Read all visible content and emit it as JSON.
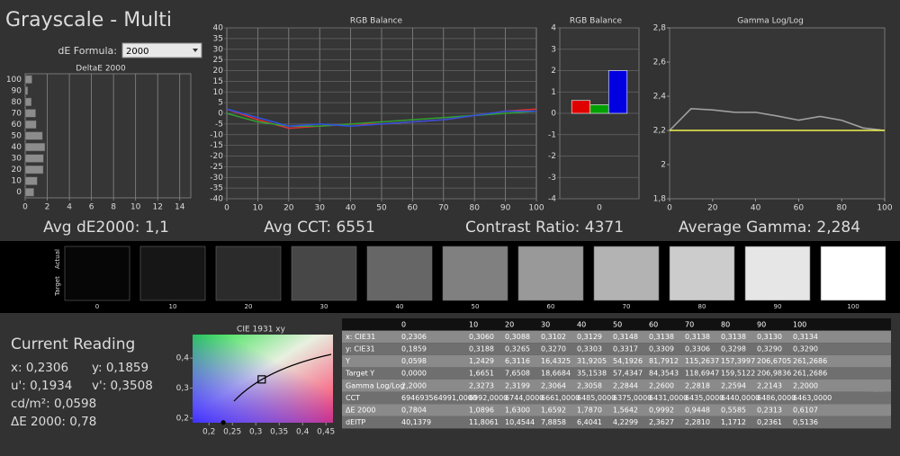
{
  "header": {
    "title": "Grayscale - Multi",
    "formula_label": "dE Formula:",
    "formula_value": "2000"
  },
  "chart_data": [
    {
      "type": "bar",
      "horizontal": true,
      "title": "DeltaE 2000",
      "categories": [
        "0",
        "10",
        "20",
        "30",
        "40",
        "50",
        "60",
        "70",
        "80",
        "90",
        "100"
      ],
      "values": [
        0.7804,
        1.0896,
        1.63,
        1.6592,
        1.787,
        1.5642,
        0.9992,
        0.9448,
        0.5585,
        0.2313,
        0.6107
      ],
      "color": "#8c8c8c",
      "xlim": [
        0,
        15
      ],
      "xticks": [
        0,
        2,
        4,
        6,
        8,
        10,
        12,
        14
      ],
      "grid": true
    },
    {
      "type": "line",
      "title": "RGB Balance",
      "x": [
        0,
        10,
        20,
        30,
        40,
        50,
        60,
        70,
        80,
        90,
        100
      ],
      "series": [
        {
          "name": "Red",
          "color": "#e03030",
          "values": [
            2,
            -3,
            -7,
            -6,
            -5,
            -5,
            -4,
            -3,
            -1,
            1,
            2
          ]
        },
        {
          "name": "Green",
          "color": "#30a030",
          "values": [
            0,
            -4,
            -6,
            -6,
            -5,
            -4,
            -3,
            -2,
            -1,
            0,
            1
          ]
        },
        {
          "name": "Blue",
          "color": "#3050e0",
          "values": [
            2,
            -2,
            -6,
            -5,
            -6,
            -5,
            -4,
            -3,
            -1,
            1,
            1
          ]
        }
      ],
      "xlim": [
        0,
        100
      ],
      "xticks": [
        0,
        10,
        20,
        30,
        40,
        50,
        60,
        70,
        80,
        90,
        100
      ],
      "ylim": [
        -40,
        40
      ],
      "yticks": [
        -40,
        -35,
        -30,
        -25,
        -20,
        -15,
        -10,
        -5,
        0,
        5,
        10,
        15,
        20,
        25,
        30,
        35,
        40
      ],
      "grid": true
    },
    {
      "type": "bar",
      "title": "RGB Balance",
      "categories": [
        "0"
      ],
      "series": [
        {
          "name": "Red",
          "color": "#e00000",
          "values": [
            0.6
          ]
        },
        {
          "name": "Green",
          "color": "#00a000",
          "values": [
            0.4
          ]
        },
        {
          "name": "Blue",
          "color": "#0000e0",
          "values": [
            2.0
          ]
        }
      ],
      "ylim": [
        -4,
        4
      ],
      "yticks": [
        -4,
        -3,
        -2,
        -1,
        0,
        1,
        2,
        3,
        4
      ],
      "grid": true
    },
    {
      "type": "line",
      "title": "Gamma Log/Log",
      "x": [
        0,
        10,
        20,
        30,
        40,
        50,
        60,
        70,
        80,
        90,
        100
      ],
      "series": [
        {
          "name": "Gamma",
          "color": "#a0a0a0",
          "values": [
            2.2,
            2.3273,
            2.3199,
            2.3064,
            2.3058,
            2.2844,
            2.26,
            2.2818,
            2.2594,
            2.2143,
            2.2
          ]
        },
        {
          "name": "Target",
          "color": "#f0f050",
          "values": [
            2.2,
            2.2,
            2.2,
            2.2,
            2.2,
            2.2,
            2.2,
            2.2,
            2.2,
            2.2,
            2.2
          ]
        }
      ],
      "xlim": [
        0,
        100
      ],
      "xticks": [
        0,
        20,
        40,
        60,
        80,
        100
      ],
      "ylim": [
        1.8,
        2.8
      ],
      "yticks": [
        {
          "value": 1.8,
          "label": "1,8"
        },
        2,
        {
          "value": 2.2,
          "label": "2,2"
        },
        {
          "value": 2.4,
          "label": "2,4"
        },
        {
          "value": 2.6,
          "label": "2,6"
        },
        {
          "value": 2.8,
          "label": "2,8"
        }
      ],
      "grid": false
    },
    {
      "type": "scatter",
      "title": "CIE 1931 xy",
      "x": [
        0.2306
      ],
      "y": [
        0.1859
      ],
      "color": "#000000",
      "target": {
        "x": 0.3127,
        "y": 0.329
      },
      "xlim": [
        0.165,
        0.465
      ],
      "xticks": [
        {
          "value": 0.2,
          "label": "0,2"
        },
        {
          "value": 0.25,
          "label": "0,25"
        },
        {
          "value": 0.3,
          "label": "0,3"
        },
        {
          "value": 0.35,
          "label": "0,35"
        },
        {
          "value": 0.4,
          "label": "0,4"
        },
        {
          "value": 0.45,
          "label": "0,45"
        }
      ],
      "ylim": [
        0.185,
        0.478
      ],
      "yticks": [
        {
          "value": 0.2,
          "label": "0,2"
        },
        {
          "value": 0.3,
          "label": "0,3"
        },
        {
          "value": 0.4,
          "label": "0,4"
        }
      ],
      "grid": false
    }
  ],
  "summary": [
    "Avg dE2000: 1,1",
    "Avg CCT: 6551",
    "Contrast Ratio: 4371",
    "Average Gamma: 2,284"
  ],
  "swatches": {
    "row_labels": [
      "Actual",
      "Target"
    ],
    "items": [
      {
        "label": "0",
        "color": "#060606"
      },
      {
        "label": "10",
        "color": "#161616"
      },
      {
        "label": "20",
        "color": "#2b2b2b"
      },
      {
        "label": "30",
        "color": "#474747"
      },
      {
        "label": "40",
        "color": "#666666"
      },
      {
        "label": "50",
        "color": "#808080"
      },
      {
        "label": "60",
        "color": "#999999"
      },
      {
        "label": "70",
        "color": "#b3b3b3"
      },
      {
        "label": "80",
        "color": "#cccccc"
      },
      {
        "label": "90",
        "color": "#e6e6e6"
      },
      {
        "label": "100",
        "color": "#ffffff"
      }
    ]
  },
  "current_reading": {
    "title": "Current Reading",
    "lines": [
      [
        "x: 0,2306",
        "y: 0,1859"
      ],
      [
        "u': 0,1934",
        "v': 0,3508"
      ],
      [
        "cd/m²: 0,0598"
      ],
      [
        "ΔE 2000: 0,78"
      ]
    ]
  },
  "table": {
    "header": [
      "0",
      "10",
      "20",
      "30",
      "40",
      "50",
      "60",
      "70",
      "80",
      "90",
      "100"
    ],
    "rows": [
      [
        "x: CIE31",
        "0,2306",
        "0,3060",
        "0,3088",
        "0,3102",
        "0,3129",
        "0,3148",
        "0,3138",
        "0,3138",
        "0,3138",
        "0,3130",
        "0,3134"
      ],
      [
        "y: CIE31",
        "0,1859",
        "0,3188",
        "0,3265",
        "0,3270",
        "0,3303",
        "0,3317",
        "0,3309",
        "0,3306",
        "0,3298",
        "0,3290",
        "0,3290"
      ],
      [
        "Y",
        "0,0598",
        "1,2429",
        "6,3116",
        "16,4325",
        "31,9205",
        "54,1926",
        "81,7912",
        "115,2637",
        "157,3997",
        "206,6705",
        "261,2686"
      ],
      [
        "Target Y",
        "0,0000",
        "1,6651",
        "7,6508",
        "18,6684",
        "35,1538",
        "57,4347",
        "84,3543",
        "118,6947",
        "159,5122",
        "206,9836",
        "261,2686"
      ],
      [
        "Gamma Log/Log",
        "2,2000",
        "2,3273",
        "2,3199",
        "2,3064",
        "2,3058",
        "2,2844",
        "2,2600",
        "2,2818",
        "2,2594",
        "2,2143",
        "2,2000"
      ],
      [
        "CCT",
        "694693564991,0000",
        "6992,0000",
        "6744,0000",
        "6661,0000",
        "6485,0000",
        "6375,0000",
        "6431,0000",
        "6435,0000",
        "6440,0000",
        "6486,0000",
        "6463,0000"
      ],
      [
        "ΔE 2000",
        "0,7804",
        "1,0896",
        "1,6300",
        "1,6592",
        "1,7870",
        "1,5642",
        "0,9992",
        "0,9448",
        "0,5585",
        "0,2313",
        "0,6107"
      ],
      [
        "dEITP",
        "40,1379",
        "11,8061",
        "10,4544",
        "7,8858",
        "6,4041",
        "4,2299",
        "2,3627",
        "2,2810",
        "1,1712",
        "0,2361",
        "0,5136"
      ]
    ]
  }
}
